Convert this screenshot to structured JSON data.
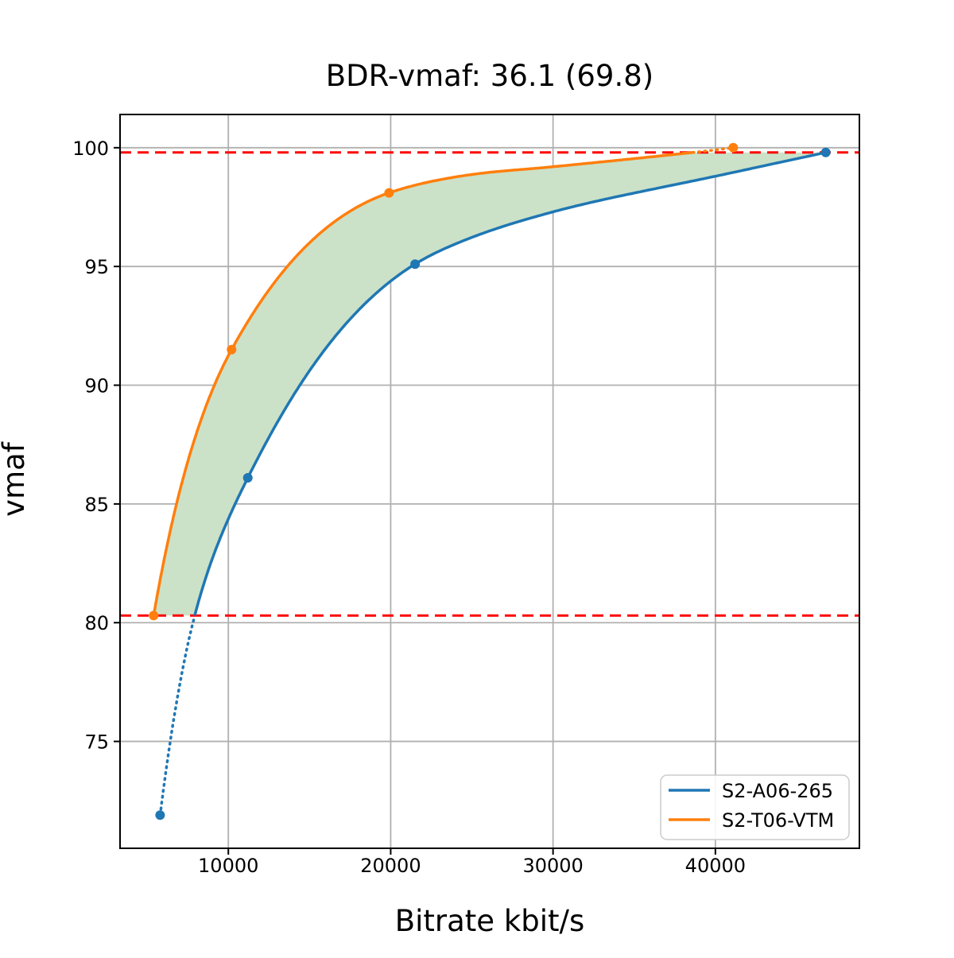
{
  "chart_data": {
    "type": "line",
    "title": "BDR-vmaf: 36.1 (69.8)",
    "xlabel": "Bitrate kbit/s",
    "ylabel": "vmaf",
    "xlim": [
      3330,
      48870
    ],
    "ylim": [
      70.5,
      101.4
    ],
    "xticks": [
      10000,
      20000,
      30000,
      40000
    ],
    "yticks": [
      75,
      80,
      85,
      90,
      95,
      100
    ],
    "grid": true,
    "grid_color": "#b0b0b0",
    "background_color": "#ffffff",
    "series": [
      {
        "name": "S2-A06-265",
        "color": "#1f77b4",
        "marker_points": [
          [
            5800,
            71.9
          ],
          [
            11200,
            86.1
          ],
          [
            21500,
            95.1
          ],
          [
            46800,
            99.8
          ]
        ],
        "curve_extra_points": [
          [
            7930,
            80.3
          ],
          [
            25300,
            96.3
          ],
          [
            30000,
            97.3
          ],
          [
            40000,
            98.8
          ]
        ],
        "dotted_where": "below",
        "dotted_threshold_vmaf": 80.3
      },
      {
        "name": "S2-T06-VTM",
        "color": "#ff7f0e",
        "marker_points": [
          [
            5400,
            80.3
          ],
          [
            10200,
            91.5
          ],
          [
            19900,
            98.1
          ],
          [
            41100,
            100.0
          ]
        ],
        "curve_extra_points": [
          [
            25300,
            98.9
          ],
          [
            30000,
            99.2
          ],
          [
            38600,
            99.8
          ]
        ],
        "dotted_where": "above",
        "dotted_threshold_vmaf": 99.8
      }
    ],
    "reference_lines": [
      {
        "name": "upper-integration-bound",
        "vmaf": 99.8,
        "color": "#ff0000",
        "style": "dashed"
      },
      {
        "name": "lower-integration-bound",
        "vmaf": 80.3,
        "color": "#ff0000",
        "style": "dashed"
      }
    ],
    "shaded_region": {
      "upper_series": "S2-T06-VTM",
      "lower_series": "S2-A06-265",
      "vmaf_range": [
        80.3,
        99.8
      ],
      "color": "#cbe2c8"
    },
    "legend": {
      "position": "lower right",
      "entries": [
        {
          "label": "S2-A06-265",
          "color": "#1f77b4"
        },
        {
          "label": "S2-T06-VTM",
          "color": "#ff7f0e"
        }
      ]
    }
  }
}
